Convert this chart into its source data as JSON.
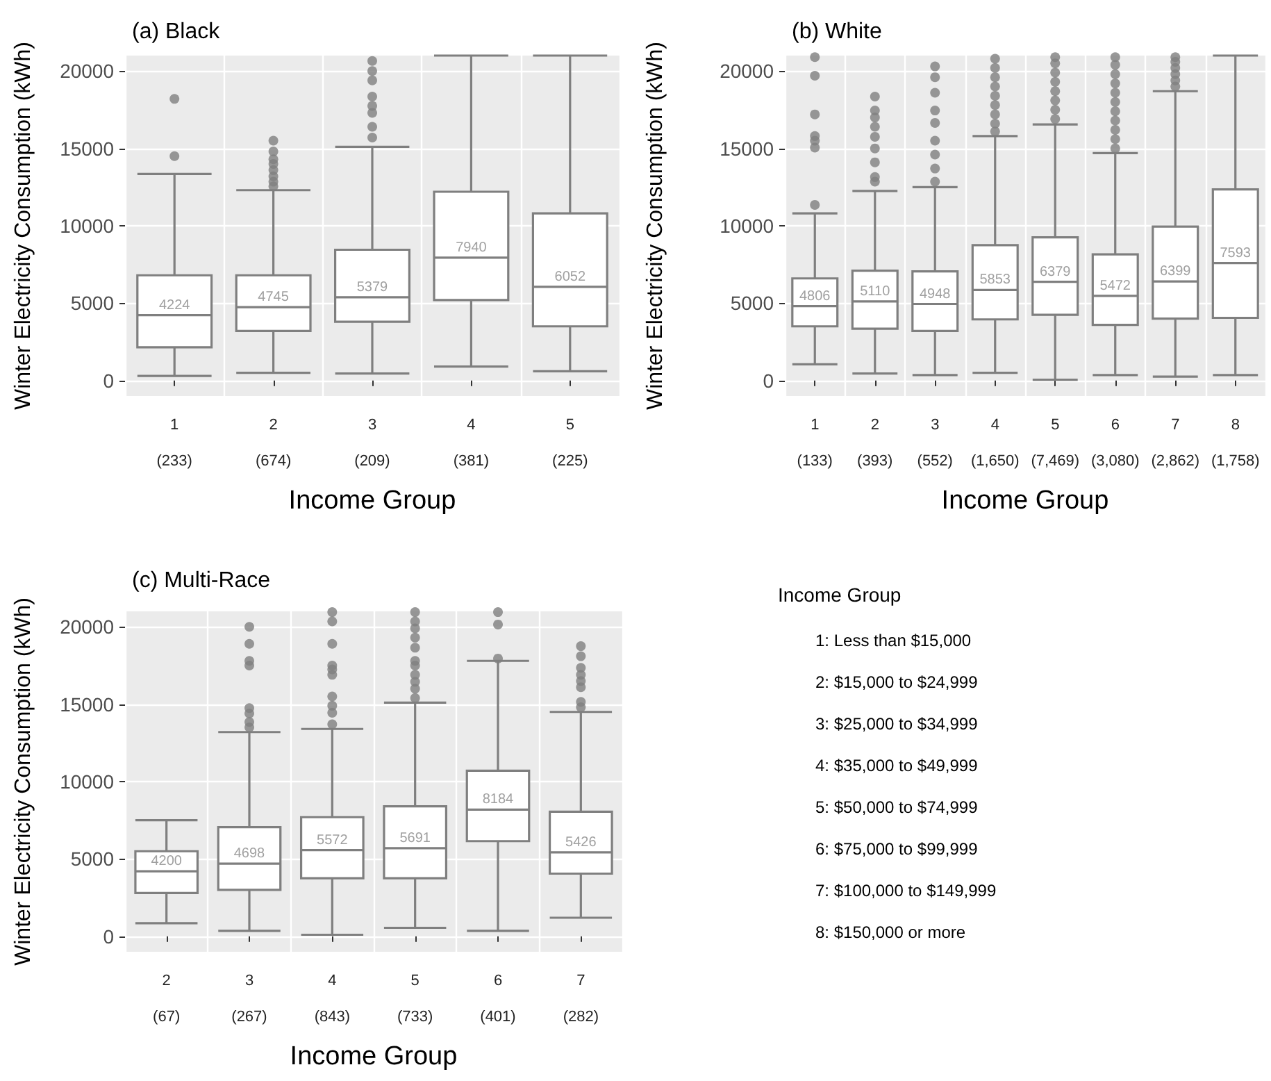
{
  "chart_data": [
    {
      "type": "box",
      "title": "(a) Black",
      "xlabel": "Income Group",
      "ylabel": "Winter Electricity Consumption (kWh)",
      "categories": [
        "1\n(233)",
        "2\n(674)",
        "3\n(209)",
        "4\n(381)",
        "5\n(225)"
      ],
      "ylim": [
        -1000,
        21000
      ],
      "yticks": [
        0,
        5000,
        10000,
        15000,
        20000
      ],
      "grid": true,
      "series": [
        {
          "color": "#7f7f7f",
          "value_labels": [
            "4224",
            "4745",
            "5379",
            "7940",
            "6052"
          ],
          "boxes": [
            {
              "low": 300,
              "q1": 2150,
              "median": 4224,
              "q3": 6800,
              "high": 13350,
              "outliers": [
                14500,
                18200
              ]
            },
            {
              "low": 500,
              "q1": 3200,
              "median": 4745,
              "q3": 6800,
              "high": 12300,
              "outliers": [
                12550,
                12850,
                13200,
                13600,
                14000,
                14300,
                14800,
                15500
              ]
            },
            {
              "low": 450,
              "q1": 3800,
              "median": 5379,
              "q3": 8450,
              "high": 15100,
              "outliers": [
                15700,
                16400,
                17300,
                17750,
                18350,
                19400,
                20000,
                20650
              ]
            },
            {
              "low": 900,
              "q1": 5200,
              "median": 7940,
              "q3": 12200,
              "high": 21000
            },
            {
              "low": 600,
              "q1": 3500,
              "median": 6052,
              "q3": 10800,
              "high": 21000
            }
          ]
        }
      ]
    },
    {
      "type": "box",
      "title": "(b) White",
      "xlabel": "Income Group",
      "ylabel": "Winter Electricity Consumption (kWh)",
      "categories": [
        "1\n(133)",
        "2\n(393)",
        "3\n(552)",
        "4\n(1,650)",
        "5\n(7,469)",
        "6\n(3,080)",
        "7\n(2,862)",
        "8\n(1,758)"
      ],
      "ylim": [
        -1000,
        21000
      ],
      "yticks": [
        0,
        5000,
        10000,
        15000,
        20000
      ],
      "grid": true,
      "series": [
        {
          "color": "#7f7f7f",
          "value_labels": [
            "4806",
            "5110",
            "4948",
            "5853",
            "6379",
            "5472",
            "6399",
            "7593"
          ],
          "boxes": [
            {
              "low": 1050,
              "q1": 3500,
              "median": 4806,
              "q3": 6600,
              "high": 10800,
              "outliers": [
                11350,
                15050,
                15500,
                15800,
                17200,
                19700,
                20900
              ]
            },
            {
              "low": 450,
              "q1": 3350,
              "median": 5110,
              "q3": 7100,
              "high": 12250,
              "outliers": [
                12850,
                13150,
                14100,
                15000,
                15750,
                16400,
                17000,
                17450,
                18350
              ]
            },
            {
              "low": 350,
              "q1": 3200,
              "median": 4948,
              "q3": 7050,
              "high": 12500,
              "outliers": [
                12850,
                13700,
                14600,
                15500,
                16650,
                17450,
                18600,
                19600,
                20300
              ]
            },
            {
              "low": 500,
              "q1": 3950,
              "median": 5853,
              "q3": 8750,
              "high": 15800,
              "outliers": [
                16100,
                16600,
                17200,
                17800,
                18400,
                19000,
                19600,
                20200,
                20800
              ]
            },
            {
              "low": 50,
              "q1": 4250,
              "median": 6379,
              "q3": 9250,
              "high": 16550,
              "outliers": [
                16900,
                17500,
                18100,
                18700,
                19300,
                19900,
                20500,
                20900
              ]
            },
            {
              "low": 350,
              "q1": 3600,
              "median": 5472,
              "q3": 8150,
              "high": 14700,
              "outliers": [
                15000,
                15600,
                16200,
                16800,
                17400,
                18000,
                18600,
                19200,
                19800,
                20400,
                20900
              ]
            },
            {
              "low": 250,
              "q1": 4000,
              "median": 6399,
              "q3": 9950,
              "high": 18700,
              "outliers": [
                19000,
                19400,
                19800,
                20200,
                20600,
                20900
              ]
            },
            {
              "low": 350,
              "q1": 4050,
              "median": 7593,
              "q3": 12350,
              "high": 21000
            }
          ]
        }
      ]
    },
    {
      "type": "box",
      "title": "(c) Multi-Race",
      "xlabel": "Income Group",
      "ylabel": "Winter Electricity Consumption (kWh)",
      "categories": [
        "2\n(67)",
        "3\n(267)",
        "4\n(843)",
        "5\n(733)",
        "6\n(401)",
        "7\n(282)"
      ],
      "ylim": [
        -1000,
        21000
      ],
      "yticks": [
        0,
        5000,
        10000,
        15000,
        20000
      ],
      "grid": true,
      "series": [
        {
          "color": "#7f7f7f",
          "value_labels": [
            "4200",
            "4698",
            "5572",
            "5691",
            "8184",
            "5426"
          ],
          "boxes": [
            {
              "low": 850,
              "q1": 2800,
              "median": 4200,
              "q3": 5500,
              "high": 7500
            },
            {
              "low": 350,
              "q1": 3000,
              "median": 4698,
              "q3": 7050,
              "high": 13200,
              "outliers": [
                13500,
                13850,
                14400,
                14750,
                17500,
                17800,
                18900,
                20000
              ]
            },
            {
              "low": 100,
              "q1": 3750,
              "median": 5572,
              "q3": 7700,
              "high": 13400,
              "outliers": [
                13700,
                14450,
                14900,
                15500,
                16900,
                17250,
                17500,
                18900,
                20350,
                20950
              ]
            },
            {
              "low": 550,
              "q1": 3750,
              "median": 5691,
              "q3": 8400,
              "high": 15100,
              "outliers": [
                15400,
                16000,
                16450,
                16900,
                17500,
                17800,
                18650,
                19300,
                19900,
                20350,
                20950
              ]
            },
            {
              "low": 350,
              "q1": 6150,
              "median": 8184,
              "q3": 10700,
              "high": 17800,
              "outliers": [
                17950,
                20150,
                20950
              ]
            },
            {
              "low": 1200,
              "q1": 4050,
              "median": 5426,
              "q3": 8050,
              "high": 14500,
              "outliers": [
                14800,
                15150,
                16100,
                16500,
                16900,
                17350,
                18100,
                18750
              ]
            }
          ]
        }
      ]
    },
    {
      "type": "other",
      "title": "Income Group",
      "annotations": [
        "1: Less than $15,000",
        "2: $15,000 to $24,999",
        "3: $25,000 to $34,999",
        "4: $35,000 to $49,999",
        "5: $50,000 to $74,999",
        "6: $75,000 to $99,999",
        "7: $100,000 to $149,999",
        "8: $150,000 or more"
      ]
    }
  ]
}
